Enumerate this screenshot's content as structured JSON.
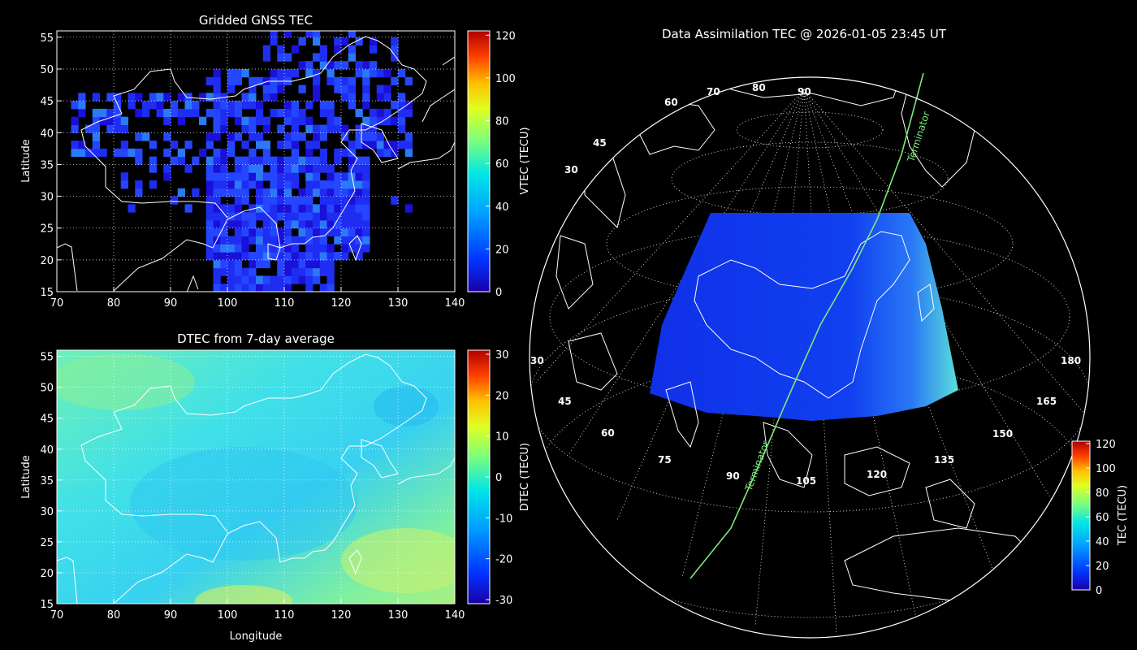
{
  "chart_data": [
    {
      "type": "heatmap",
      "title": "Gridded GNSS TEC",
      "xlabel": "",
      "ylabel": "Latitude",
      "xlim": [
        70,
        140
      ],
      "ylim": [
        15,
        56
      ],
      "x_ticks": [
        "70",
        "80",
        "90",
        "100",
        "110",
        "120",
        "130",
        "140"
      ],
      "y_ticks": [
        "15",
        "20",
        "25",
        "30",
        "35",
        "40",
        "45",
        "50",
        "55"
      ],
      "grid": true,
      "colorbar": {
        "label": "VTEC (TECU)",
        "range": [
          0,
          122
        ],
        "ticks": [
          "0",
          "20",
          "40",
          "60",
          "80",
          "100",
          "120"
        ]
      },
      "dominant_value_range": [
        10,
        30
      ],
      "coverage": "sparse gridded cells over China and East Asia, black where no data"
    },
    {
      "type": "heatmap",
      "title": "DTEC from 7-day average",
      "xlabel": "Longitude",
      "ylabel": "Latitude",
      "xlim": [
        70,
        140
      ],
      "ylim": [
        15,
        56
      ],
      "x_ticks": [
        "70",
        "80",
        "90",
        "100",
        "110",
        "120",
        "130",
        "140"
      ],
      "y_ticks": [
        "15",
        "20",
        "25",
        "30",
        "35",
        "40",
        "45",
        "50",
        "55"
      ],
      "grid": true,
      "colorbar": {
        "label": "DTEC (TECU)",
        "range": [
          -31,
          31
        ],
        "ticks": [
          "-30",
          "-20",
          "-10",
          "0",
          "10",
          "20",
          "30"
        ]
      },
      "dominant_value_range": [
        -8,
        8
      ]
    },
    {
      "type": "heatmap",
      "title": "Data Assimilation TEC @ 2026-01-05 23:45 UT",
      "projection": "orthographic globe",
      "region": {
        "lon": [
          70,
          140
        ],
        "lat": [
          15,
          55
        ]
      },
      "colorbar": {
        "label": "TEC (TECU)",
        "range": [
          0,
          122
        ],
        "ticks": [
          "0",
          "20",
          "40",
          "60",
          "80",
          "100",
          "120"
        ]
      },
      "lat_labels": [
        "30",
        "45",
        "60",
        "70",
        "80",
        "90"
      ],
      "lon_labels": [
        "30",
        "45",
        "60",
        "75",
        "90",
        "105",
        "120",
        "135",
        "150",
        "165",
        "180"
      ],
      "annotations": [
        {
          "text": "Terminator",
          "color": "#7ee87e"
        },
        {
          "text": "Terminator",
          "color": "#7ee87e"
        }
      ]
    }
  ]
}
